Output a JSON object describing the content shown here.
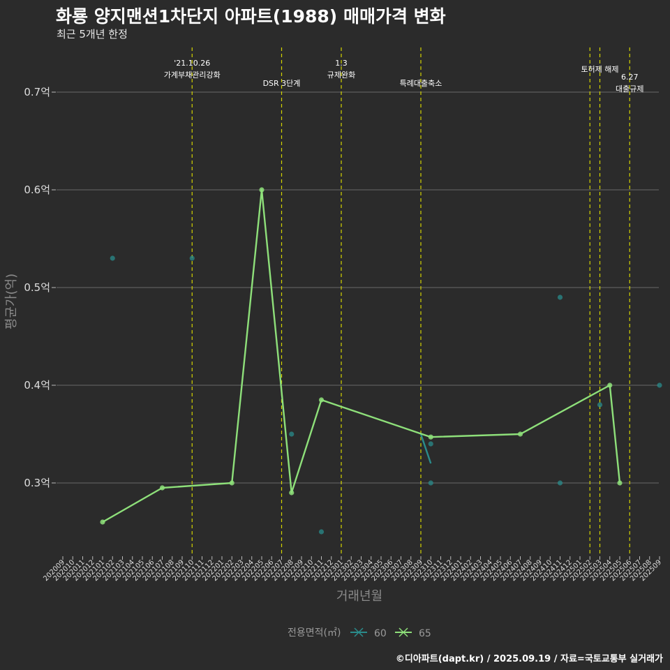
{
  "header": {
    "title": "화룡 양지맨션1차단지 아파트(1988) 매매가격 변화",
    "subtitle": "최근 5개년 한정",
    "caption": "©디아파트(dapt.kr) / 2025.09.19 / 자료=국토교통부 실거래가"
  },
  "colors": {
    "background": "#2b2b2b",
    "grid": "#6a6a6a",
    "event_line": "#d4d400",
    "series_60": "#2a8c8c",
    "series_65": "#8ee07a"
  },
  "chart_data": {
    "type": "line",
    "xlabel": "거래년월",
    "ylabel": "평균가(억)",
    "ylim": [
      0.23,
      0.74
    ],
    "y_ticks": [
      {
        "value": 0.3,
        "label": "0.3억"
      },
      {
        "value": 0.4,
        "label": "0.4억"
      },
      {
        "value": 0.5,
        "label": "0.5억"
      },
      {
        "value": 0.6,
        "label": "0.6억"
      },
      {
        "value": 0.7,
        "label": "0.7억"
      }
    ],
    "x_labels": [
      "202009",
      "202010",
      "202011",
      "202012",
      "202101",
      "202102",
      "202103",
      "202104",
      "202105",
      "202106",
      "202107",
      "202108",
      "202109",
      "202110",
      "202111",
      "202112",
      "202201",
      "202202",
      "202203",
      "202204",
      "202205",
      "202206",
      "202207",
      "202208",
      "202209",
      "202210",
      "202211",
      "202212",
      "202301",
      "202302",
      "202303",
      "202304",
      "202305",
      "202306",
      "202307",
      "202308",
      "202309",
      "202310",
      "202311",
      "202312",
      "202401",
      "202402",
      "202403",
      "202404",
      "202405",
      "202406",
      "202407",
      "202408",
      "202409",
      "202410",
      "202411",
      "202412",
      "202501",
      "202502",
      "202503",
      "202504",
      "202505",
      "202506",
      "202507",
      "202508",
      "202509"
    ],
    "legend": {
      "title": "전용면적(㎡)",
      "position": "bottom"
    },
    "series": [
      {
        "name": "60",
        "line": [
          {
            "x": "202309",
            "y": 0.35
          },
          {
            "x": "202310",
            "y": 0.32
          }
        ],
        "points": [
          {
            "x": "202102",
            "y": 0.53
          },
          {
            "x": "202110",
            "y": 0.53
          },
          {
            "x": "202208",
            "y": 0.35
          },
          {
            "x": "202211",
            "y": 0.25
          },
          {
            "x": "202310",
            "y": 0.34
          },
          {
            "x": "202310",
            "y": 0.3
          },
          {
            "x": "202411",
            "y": 0.49
          },
          {
            "x": "202411",
            "y": 0.3
          },
          {
            "x": "202503",
            "y": 0.38
          },
          {
            "x": "202509",
            "y": 0.4
          }
        ]
      },
      {
        "name": "65",
        "line": [
          {
            "x": "202101",
            "y": 0.26
          },
          {
            "x": "202107",
            "y": 0.295
          },
          {
            "x": "202202",
            "y": 0.3
          },
          {
            "x": "202205",
            "y": 0.6
          },
          {
            "x": "202208",
            "y": 0.29
          },
          {
            "x": "202211",
            "y": 0.385
          },
          {
            "x": "202310",
            "y": 0.347
          },
          {
            "x": "202407",
            "y": 0.35
          },
          {
            "x": "202504",
            "y": 0.4
          },
          {
            "x": "202505",
            "y": 0.3
          }
        ]
      }
    ],
    "events": [
      {
        "x": "202110",
        "lines": [
          "'21.10.26",
          "가계부채관리강화"
        ],
        "level": 0
      },
      {
        "x": "202207",
        "lines": [
          "DSR 3단계"
        ],
        "level": 2
      },
      {
        "x": "202301",
        "lines": [
          "1.3",
          "규제완화"
        ],
        "level": 0
      },
      {
        "x": "202309",
        "lines": [
          "특례대출축소"
        ],
        "level": 2
      },
      {
        "x": "202502",
        "lines": [],
        "level": 1
      },
      {
        "x": "202503",
        "lines": [
          "토허제 해제"
        ],
        "level": 1
      },
      {
        "x": "202506",
        "lines": [
          "6.27",
          "대출규제"
        ],
        "level": 3
      }
    ]
  }
}
